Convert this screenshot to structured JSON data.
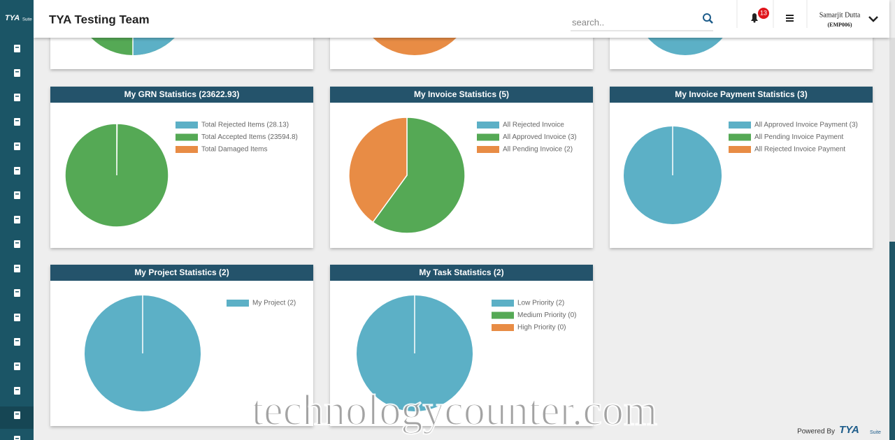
{
  "header": {
    "logo": "TYA",
    "logo_suffix": "Suite",
    "title": "TYA Testing Team",
    "search_placeholder": "search..",
    "notification_count": 13,
    "user_name": "Samarjit Dutta",
    "user_id": "(EMP006)"
  },
  "chart_data": [
    {
      "type": "pie",
      "title": "My GRN Statistics (23622.93)",
      "categories": [
        "Total Rejected Items (28.13)",
        "Total Accepted Items (23594.8)",
        "Total Damaged Items"
      ],
      "values": [
        28.13,
        23594.8,
        0
      ],
      "colors": [
        "#5cb0c6",
        "#55a955",
        "#e88c45"
      ]
    },
    {
      "type": "pie",
      "title": "My Invoice Statistics (5)",
      "categories": [
        "All Rejected Invoice",
        "All Approved Invoice (3)",
        "All Pending Invoice (2)"
      ],
      "values": [
        0,
        3,
        2
      ],
      "colors": [
        "#5cb0c6",
        "#55a955",
        "#e88c45"
      ]
    },
    {
      "type": "pie",
      "title": "My Invoice Payment Statistics (3)",
      "categories": [
        "All Approved Invoice Payment (3)",
        "All Pending Invoice Payment",
        "All Rejected Invoice Payment"
      ],
      "values": [
        3,
        0,
        0
      ],
      "colors": [
        "#5cb0c6",
        "#55a955",
        "#e88c45"
      ]
    },
    {
      "type": "pie",
      "title": "My Project Statistics (2)",
      "categories": [
        "My Project (2)"
      ],
      "values": [
        2
      ],
      "colors": [
        "#5cb0c6"
      ]
    },
    {
      "type": "pie",
      "title": "My Task Statistics (2)",
      "categories": [
        "Low Priority (2)",
        "Medium Priority (0)",
        "High Priority (0)"
      ],
      "values": [
        2,
        0,
        0
      ],
      "colors": [
        "#5cb0c6",
        "#55a955",
        "#e88c45"
      ]
    }
  ],
  "footer": {
    "powered_by": "Powered By",
    "logo": "TYA",
    "logo_suffix": "Suite",
    "watermark": "technologycounter.com"
  }
}
